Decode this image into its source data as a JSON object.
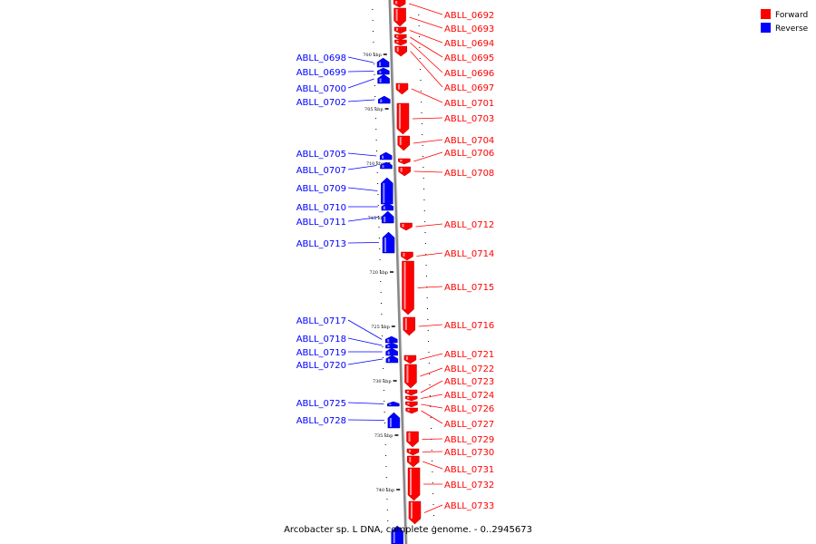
{
  "caption": "Arcobacter sp. L DNA, complete genome. - 0..2945673",
  "legend": [
    {
      "label": "Forward",
      "color": "#ff0000"
    },
    {
      "label": "Reverse",
      "color": "#0000ff"
    }
  ],
  "colors": {
    "forward": "#ff0000",
    "reverse": "#0000ff",
    "axis": "#999999"
  },
  "scale_marks": [
    "700 kbp",
    "705 kbp",
    "710 kbp",
    "715 kbp",
    "720 kbp",
    "725 kbp",
    "730 kbp",
    "735 kbp",
    "740 kbp"
  ],
  "forward_genes": [
    "ABLL_0692",
    "ABLL_0693",
    "ABLL_0694",
    "ABLL_0695",
    "ABLL_0696",
    "ABLL_0697",
    "ABLL_0701",
    "ABLL_0703",
    "ABLL_0704",
    "ABLL_0706",
    "ABLL_0708",
    "ABLL_0712",
    "ABLL_0714",
    "ABLL_0715",
    "ABLL_0716",
    "ABLL_0721",
    "ABLL_0722",
    "ABLL_0723",
    "ABLL_0724",
    "ABLL_0726",
    "ABLL_0727",
    "ABLL_0729",
    "ABLL_0730",
    "ABLL_0731",
    "ABLL_0732",
    "ABLL_0733"
  ],
  "reverse_genes": [
    "ABLL_0698",
    "ABLL_0699",
    "ABLL_0700",
    "ABLL_0702",
    "ABLL_0705",
    "ABLL_0707",
    "ABLL_0709",
    "ABLL_0710",
    "ABLL_0711",
    "ABLL_0713",
    "ABLL_0717",
    "ABLL_0718",
    "ABLL_0719",
    "ABLL_0720",
    "ABLL_0725",
    "ABLL_0728"
  ]
}
